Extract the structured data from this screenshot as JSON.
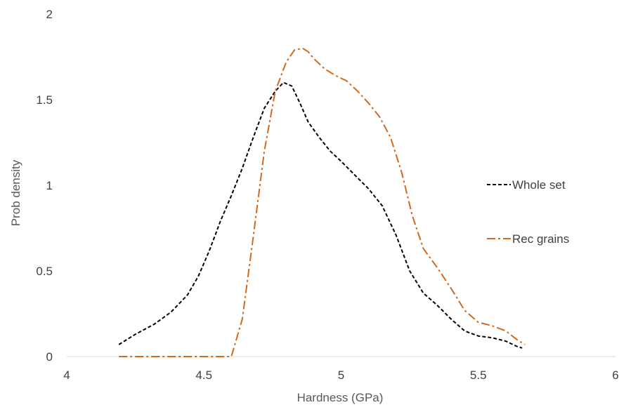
{
  "chart_data": {
    "type": "line",
    "title": "",
    "xlabel": "Hardness (GPa)",
    "ylabel": "Prob density",
    "xlim": [
      4,
      6
    ],
    "ylim": [
      0,
      2
    ],
    "x_ticks": [
      4,
      4.5,
      5,
      5.5,
      6
    ],
    "x_tick_labels": [
      "4",
      "4.5",
      "5",
      "5.5",
      "6"
    ],
    "y_ticks": [
      0,
      0.5,
      1,
      1.5,
      2
    ],
    "y_tick_labels": [
      "0",
      "0.5",
      "1",
      "1.5",
      "2"
    ],
    "grid": false,
    "legend_position": "right",
    "series": [
      {
        "name": "Whole set",
        "color": "#000000",
        "style": "dashed",
        "x": [
          4.19,
          4.25,
          4.32,
          4.38,
          4.44,
          4.48,
          4.52,
          4.56,
          4.6,
          4.64,
          4.68,
          4.72,
          4.76,
          4.79,
          4.82,
          4.85,
          4.88,
          4.92,
          4.96,
          5.0,
          5.05,
          5.1,
          5.15,
          5.2,
          5.25,
          5.3,
          5.35,
          5.4,
          5.45,
          5.5,
          5.55,
          5.6,
          5.64,
          5.66
        ],
        "y": [
          0.07,
          0.13,
          0.19,
          0.26,
          0.36,
          0.47,
          0.62,
          0.79,
          0.94,
          1.1,
          1.28,
          1.45,
          1.55,
          1.6,
          1.58,
          1.48,
          1.37,
          1.28,
          1.2,
          1.14,
          1.06,
          0.98,
          0.88,
          0.71,
          0.5,
          0.37,
          0.3,
          0.22,
          0.15,
          0.12,
          0.11,
          0.09,
          0.06,
          0.05
        ]
      },
      {
        "name": "Rec grains",
        "color": "#d26a1e",
        "style": "dashdot",
        "x": [
          4.19,
          4.3,
          4.4,
          4.5,
          4.55,
          4.6,
          4.64,
          4.68,
          4.72,
          4.76,
          4.8,
          4.83,
          4.86,
          4.88,
          4.9,
          4.94,
          4.98,
          5.02,
          5.06,
          5.1,
          5.14,
          5.18,
          5.22,
          5.26,
          5.3,
          5.35,
          5.4,
          5.45,
          5.5,
          5.55,
          5.6,
          5.64,
          5.67
        ],
        "y": [
          0.0,
          0.0,
          0.0,
          0.0,
          0.0,
          0.0,
          0.22,
          0.7,
          1.2,
          1.55,
          1.72,
          1.79,
          1.8,
          1.78,
          1.74,
          1.68,
          1.64,
          1.61,
          1.55,
          1.48,
          1.4,
          1.28,
          1.08,
          0.82,
          0.63,
          0.52,
          0.4,
          0.27,
          0.2,
          0.18,
          0.15,
          0.1,
          0.07
        ]
      }
    ]
  }
}
